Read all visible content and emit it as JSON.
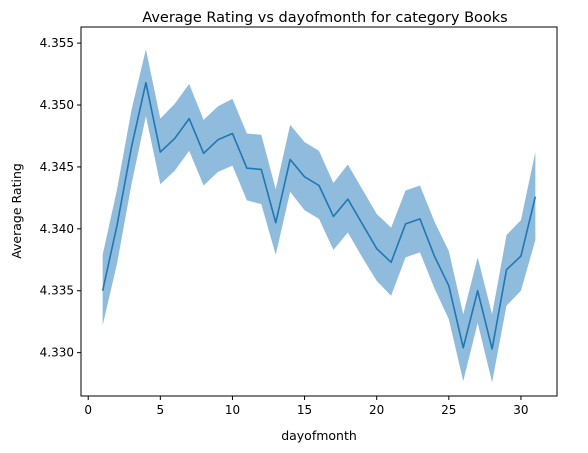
{
  "chart_data": {
    "type": "line",
    "title": "Average Rating vs dayofmonth for category Books",
    "xlabel": "dayofmonth",
    "ylabel": "Average Rating",
    "xlim": [
      -0.5,
      32.5
    ],
    "ylim": [
      4.3265,
      4.3563
    ],
    "x_ticks": [
      0,
      5,
      10,
      15,
      20,
      25,
      30
    ],
    "x_tick_labels": [
      "0",
      "5",
      "10",
      "15",
      "20",
      "25",
      "30"
    ],
    "y_ticks": [
      4.33,
      4.335,
      4.34,
      4.345,
      4.35,
      4.355
    ],
    "y_tick_labels": [
      "4.330",
      "4.335",
      "4.340",
      "4.345",
      "4.350",
      "4.355"
    ],
    "grid": false,
    "legend": "none",
    "line_color": "#1f77b4",
    "band_color": "#8fbbdd",
    "series": [
      {
        "x": [
          1,
          2,
          3,
          4,
          5,
          6,
          7,
          8,
          9,
          10,
          11,
          12,
          13,
          14,
          15,
          16,
          17,
          18,
          19,
          20,
          21,
          22,
          23,
          24,
          25,
          26,
          27,
          28,
          29,
          30,
          31
        ],
        "values": [
          4.335,
          4.3403,
          4.3466,
          4.3518,
          4.3462,
          4.3473,
          4.3489,
          4.3461,
          4.3472,
          4.3477,
          4.3449,
          4.3448,
          4.3405,
          4.3456,
          4.3442,
          4.3435,
          4.341,
          4.3424,
          4.3404,
          4.3384,
          4.3373,
          4.3404,
          4.3408,
          4.3378,
          4.3354,
          4.3304,
          4.335,
          4.3303,
          4.3367,
          4.3378,
          4.3426
        ],
        "lower": [
          4.3322,
          4.3372,
          4.3436,
          4.3491,
          4.3436,
          4.3447,
          4.3463,
          4.3435,
          4.3446,
          4.3451,
          4.3423,
          4.342,
          4.3379,
          4.343,
          4.3415,
          4.3408,
          4.3383,
          4.3397,
          4.3377,
          4.3358,
          4.3346,
          4.3377,
          4.3381,
          4.3352,
          4.3327,
          4.3277,
          4.3324,
          4.3276,
          4.3338,
          4.335,
          4.3391
        ],
        "upper": [
          4.3379,
          4.3432,
          4.3496,
          4.3545,
          4.3489,
          4.3501,
          4.3517,
          4.3488,
          4.3499,
          4.3505,
          4.3477,
          4.3476,
          4.3432,
          4.3484,
          4.347,
          4.3463,
          4.3437,
          4.3452,
          4.3432,
          4.3412,
          4.3401,
          4.3431,
          4.3435,
          4.3406,
          4.3382,
          4.3331,
          4.3377,
          4.3331,
          4.3395,
          4.3407,
          4.3462
        ]
      }
    ]
  }
}
